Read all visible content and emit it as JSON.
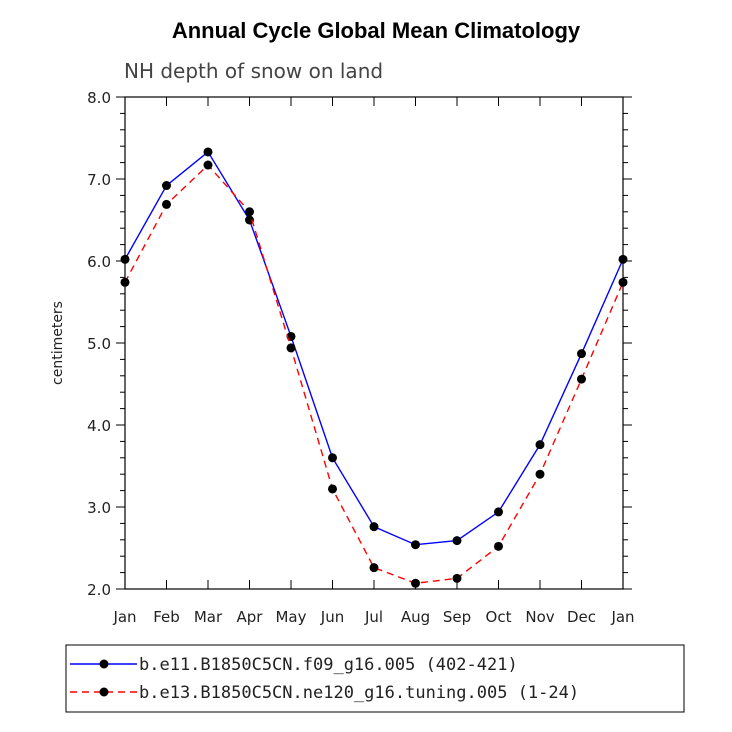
{
  "chart_data": {
    "type": "line",
    "title": "Annual Cycle Global Mean Climatology",
    "subtitle": "NH depth of snow on land",
    "ylabel": "centimeters",
    "xlabel": "",
    "categories": [
      "Jan",
      "Feb",
      "Mar",
      "Apr",
      "May",
      "Jun",
      "Jul",
      "Aug",
      "Sep",
      "Oct",
      "Nov",
      "Dec",
      "Jan"
    ],
    "ylim": [
      2.0,
      8.0
    ],
    "yticks": [
      "2.0",
      "3.0",
      "4.0",
      "5.0",
      "6.0",
      "7.0",
      "8.0"
    ],
    "series": [
      {
        "name": "b.e11.B1850C5CN.f09_g16.005 (402-421)",
        "color": "#0000ff",
        "dash": "solid",
        "values": [
          6.02,
          6.92,
          7.33,
          6.5,
          5.08,
          3.6,
          2.76,
          2.54,
          2.59,
          2.94,
          3.76,
          4.87,
          6.02
        ]
      },
      {
        "name": "b.e13.B1850C5CN.ne120_g16.tuning.005 (1-24)",
        "color": "#ff0000",
        "dash": "dashed",
        "values": [
          5.74,
          6.69,
          7.17,
          6.6,
          4.94,
          3.22,
          2.26,
          2.07,
          2.13,
          2.52,
          3.4,
          4.56,
          5.74
        ]
      }
    ],
    "grid": false,
    "legend_position": "bottom"
  }
}
